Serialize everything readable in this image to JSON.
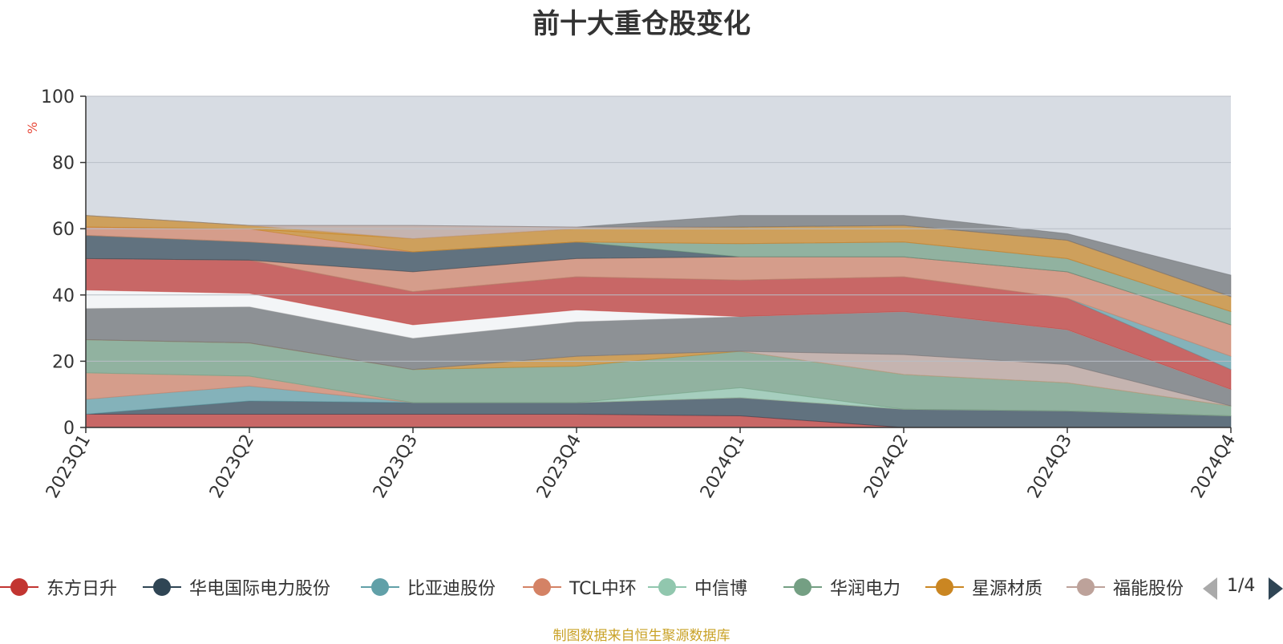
{
  "colors": {
    "background": "#d7dce3",
    "grid": "#b8bec6",
    "axis": "#333333",
    "unit": "#e84c3d",
    "source": "#c9a227",
    "pager_inactive": "#aaaaaa",
    "pager_active": "#2f4554"
  },
  "legend": {
    "items": [
      {
        "name": "东方日升",
        "color": "#c23531"
      },
      {
        "name": "华电国际电力股份",
        "color": "#2f4554"
      },
      {
        "name": "比亚迪股份",
        "color": "#61a0a8"
      },
      {
        "name": "TCL中环",
        "color": "#d48265"
      },
      {
        "name": "中信博",
        "color": "#91c7ae"
      },
      {
        "name": "华润电力",
        "color": "#749f83"
      },
      {
        "name": "星源材质",
        "color": "#ca8622"
      },
      {
        "name": "福能股份",
        "color": "#bda29a"
      }
    ],
    "pager_text": "1/4",
    "prev_icon": "triangle-left-icon",
    "next_icon": "triangle-right-icon"
  },
  "source_note": "制图数据来自恒生聚源数据库",
  "chart_data": {
    "type": "area",
    "stacked": true,
    "title": "前十大重仓股变化",
    "ylabel": "%",
    "xlabel": "",
    "ylim": [
      0,
      100
    ],
    "y_ticks": [
      0,
      20,
      40,
      60,
      80,
      100
    ],
    "grid": true,
    "categories": [
      "2023Q1",
      "2023Q2",
      "2023Q3",
      "2023Q4",
      "2024Q1",
      "2024Q2",
      "2024Q3",
      "2024Q4"
    ],
    "series": [
      {
        "name": "东方日升",
        "color": "#c23531",
        "values": [
          4,
          4,
          4,
          4,
          3.5,
          0,
          0,
          0
        ]
      },
      {
        "name": "华电国际电力股份",
        "color": "#2f4554",
        "values": [
          0,
          4,
          3.5,
          3.5,
          5.5,
          5.5,
          5,
          3.5
        ]
      },
      {
        "name": "比亚迪股份",
        "color": "#61a0a8",
        "values": [
          4.5,
          4.5,
          0,
          0,
          0,
          0,
          0,
          0
        ]
      },
      {
        "name": "TCL中环",
        "color": "#d48265",
        "values": [
          8,
          3,
          0,
          0,
          0,
          0,
          0,
          0
        ]
      },
      {
        "name": "中信博",
        "color": "#91c7ae",
        "values": [
          0,
          0,
          0,
          0,
          3,
          0,
          0,
          0
        ]
      },
      {
        "name": "华润电力",
        "color": "#749f83",
        "values": [
          10,
          10,
          10,
          11,
          11,
          10.5,
          8.5,
          3
        ]
      },
      {
        "name": "星源材质",
        "color": "#ca8622",
        "values": [
          0,
          0,
          0,
          3,
          0,
          0,
          0,
          0
        ]
      },
      {
        "name": "福能股份",
        "color": "#bda29a",
        "values": [
          0,
          0,
          0,
          0,
          0,
          6,
          5.5,
          0
        ]
      },
      {
        "name": "",
        "color": "#6e7074",
        "values": [
          9.5,
          11,
          9.5,
          10.5,
          10.5,
          13,
          10.5,
          5
        ]
      },
      {
        "name": "",
        "color": "#ffffff",
        "values": [
          5.5,
          4,
          4,
          3.5,
          0,
          0,
          0,
          0
        ]
      },
      {
        "name": "",
        "color": "#c23531",
        "values": [
          9.5,
          10,
          10,
          10,
          11,
          10.5,
          9.5,
          6
        ]
      },
      {
        "name": "",
        "color": "#61a0a8",
        "values": [
          0,
          0,
          0,
          0,
          0,
          0,
          0,
          4
        ]
      },
      {
        "name": "",
        "color": "#d48265",
        "values": [
          0,
          0,
          6,
          5.5,
          7,
          6,
          8,
          9.5
        ]
      },
      {
        "name": "",
        "color": "#2f4554",
        "values": [
          7,
          5.5,
          6,
          5,
          0,
          0,
          0,
          0
        ]
      },
      {
        "name": "",
        "color": "#749f83",
        "values": [
          0,
          0,
          0,
          0,
          4,
          4.5,
          4,
          4
        ]
      },
      {
        "name": "",
        "color": "#d48265",
        "values": [
          2.5,
          4,
          0,
          0,
          0,
          0,
          0,
          0
        ]
      },
      {
        "name": "",
        "color": "#ca8622",
        "values": [
          0,
          0,
          4,
          4,
          5,
          5,
          5.5,
          4.5
        ]
      },
      {
        "name": "",
        "color": "#ca8622",
        "values": [
          3.5,
          1,
          0,
          0,
          0,
          0,
          0,
          0
        ]
      },
      {
        "name": "",
        "color": "#bda29a",
        "values": [
          0,
          0,
          4,
          0.5,
          0,
          0,
          0,
          0
        ]
      },
      {
        "name": "",
        "color": "#6e7074",
        "values": [
          0,
          0,
          0,
          0,
          3.5,
          3,
          2,
          6.5
        ]
      }
    ]
  }
}
